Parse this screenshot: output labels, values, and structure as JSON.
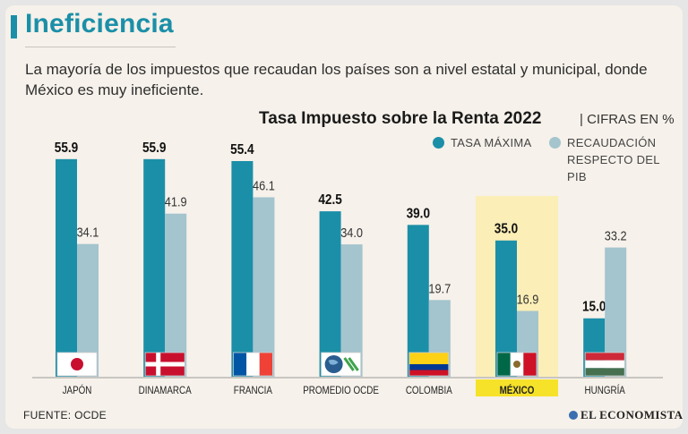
{
  "header": {
    "title": "Ineficiencia",
    "subtitle": "La mayoría de los impuestos que recaudan los países son a nivel estatal y municipal, donde México es muy ineficiente."
  },
  "colors": {
    "accent": "#1b8fa8",
    "series_max": "#1b8fa8",
    "series_pib": "#a4c4ce",
    "highlight": "#fbeeb6",
    "highlight_label": "#f6e229"
  },
  "footer": {
    "source": "FUENTE:  OCDE",
    "brand": "EL ECONOMISTA"
  },
  "chart_data": {
    "type": "bar",
    "title": "Tasa Impuesto sobre la Renta 2022",
    "unit_label": "| CIFRAS EN %",
    "categories": [
      "JAPÓN",
      "DINAMARCA",
      "FRANCIA",
      "PROMEDIO OCDE",
      "COLOMBIA",
      "MÉXICO",
      "HUNGRÍA"
    ],
    "highlighted_category": "MÉXICO",
    "series": [
      {
        "name": "TASA  MÁXIMA",
        "values": [
          55.9,
          55.9,
          55.4,
          42.5,
          39.0,
          35.0,
          15.0
        ]
      },
      {
        "name": "RECAUDACIÓN RESPECTO DEL PIB",
        "values": [
          34.1,
          41.9,
          46.1,
          34.0,
          19.7,
          16.9,
          33.2
        ]
      }
    ],
    "legend": [
      {
        "label": "TASA  MÁXIMA"
      },
      {
        "lines": [
          "RECAUDACIÓN",
          "RESPECTO DEL",
          "PIB"
        ]
      }
    ],
    "flags": [
      "japan-flag-icon",
      "denmark-flag-icon",
      "france-flag-icon",
      "oecd-globe-icon",
      "colombia-flag-icon",
      "mexico-flag-icon",
      "hungary-flag-icon"
    ],
    "ylim": [
      0,
      60
    ],
    "legend_position": "top-right"
  }
}
